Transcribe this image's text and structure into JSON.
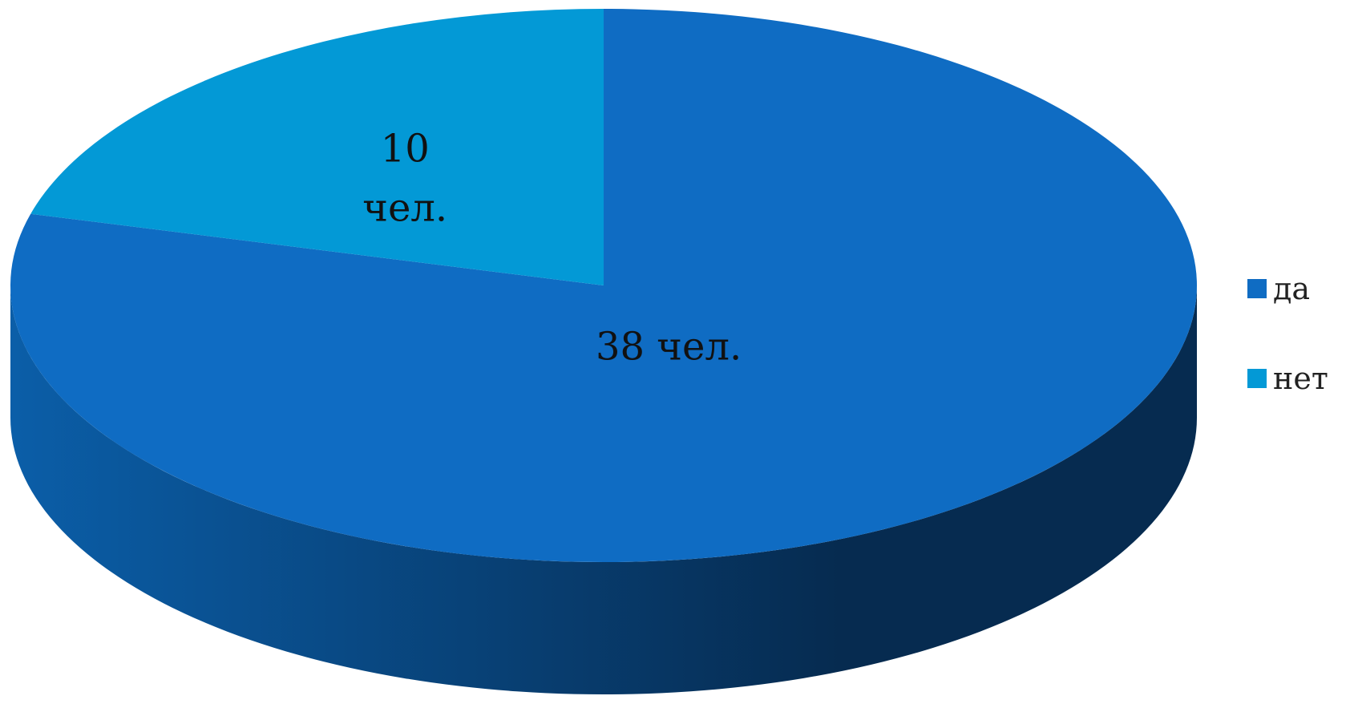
{
  "chart_data": {
    "type": "pie",
    "style": "3d",
    "title": "",
    "slices": [
      {
        "label": "да",
        "value": 38,
        "data_label": "38 чел.",
        "color": "#0F6CC3"
      },
      {
        "label": "нет",
        "value": 10,
        "data_label_lines": [
          "10",
          "чел."
        ],
        "color": "#0399D6"
      }
    ],
    "legend": {
      "position": "right",
      "items": [
        {
          "label": "да",
          "color": "#0F6CC3"
        },
        {
          "label": "нет",
          "color": "#0399D6"
        }
      ]
    },
    "side_colors": [
      "#0B5EA8",
      "#062B50"
    ]
  }
}
